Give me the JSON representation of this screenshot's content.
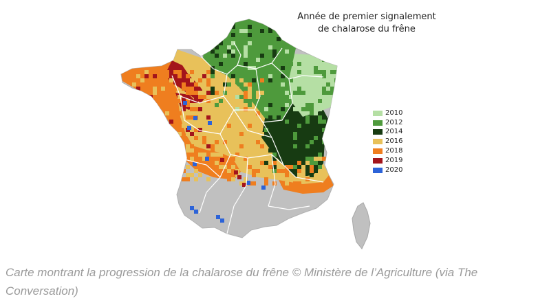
{
  "map": {
    "title_line1": "Année de premier signalement",
    "title_line2": "de chalarose du frêne",
    "base_color": "#c0c0c0",
    "border_color": "#ffffff",
    "legend": [
      {
        "year": "2010",
        "color": "#b5dfa4"
      },
      {
        "year": "2012",
        "color": "#4e9a3c"
      },
      {
        "year": "2014",
        "color": "#173b12"
      },
      {
        "year": "2016",
        "color": "#e8c15a"
      },
      {
        "year": "2018",
        "color": "#ef7e1f"
      },
      {
        "year": "2019",
        "color": "#a3141b"
      },
      {
        "year": "2020",
        "color": "#2c63d8"
      }
    ]
  },
  "caption": {
    "text": "Carte montrant la progression de la chalarose du frêne © Ministère de l’Agriculture (via The Conversation)"
  }
}
